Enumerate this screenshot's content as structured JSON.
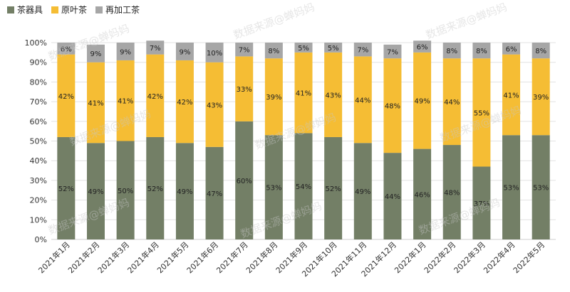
{
  "chart_data": {
    "type": "bar",
    "stacked": true,
    "percent": true,
    "categories": [
      "2021年1月",
      "2021年2月",
      "2021年3月",
      "2021年4月",
      "2021年5月",
      "2021年6月",
      "2021年7月",
      "2021年8月",
      "2021年9月",
      "2021年10月",
      "2021年11月",
      "2021年12月",
      "2022年1月",
      "2022年2月",
      "2022年3月",
      "2022年4月",
      "2022年5月"
    ],
    "series": [
      {
        "name": "茶器具",
        "color": "#737f66",
        "values": [
          52,
          49,
          50,
          52,
          49,
          47,
          60,
          53,
          54,
          52,
          49,
          44,
          46,
          48,
          37,
          53,
          53
        ]
      },
      {
        "name": "原叶茶",
        "color": "#f5bd34",
        "values": [
          42,
          41,
          41,
          42,
          42,
          43,
          33,
          39,
          41,
          43,
          44,
          48,
          49,
          44,
          55,
          41,
          39
        ]
      },
      {
        "name": "再加工茶",
        "color": "#a6a6a6",
        "values": [
          6,
          9,
          9,
          7,
          9,
          10,
          7,
          8,
          5,
          5,
          7,
          7,
          6,
          8,
          8,
          6,
          8
        ]
      }
    ],
    "ylim": [
      0,
      100
    ],
    "yticks": [
      "0%",
      "10%",
      "20%",
      "30%",
      "40%",
      "50%",
      "60%",
      "70%",
      "80%",
      "90%",
      "100%"
    ],
    "legend_position": "top-left",
    "grid": true
  },
  "watermark": "数据来源@蝉妈妈"
}
